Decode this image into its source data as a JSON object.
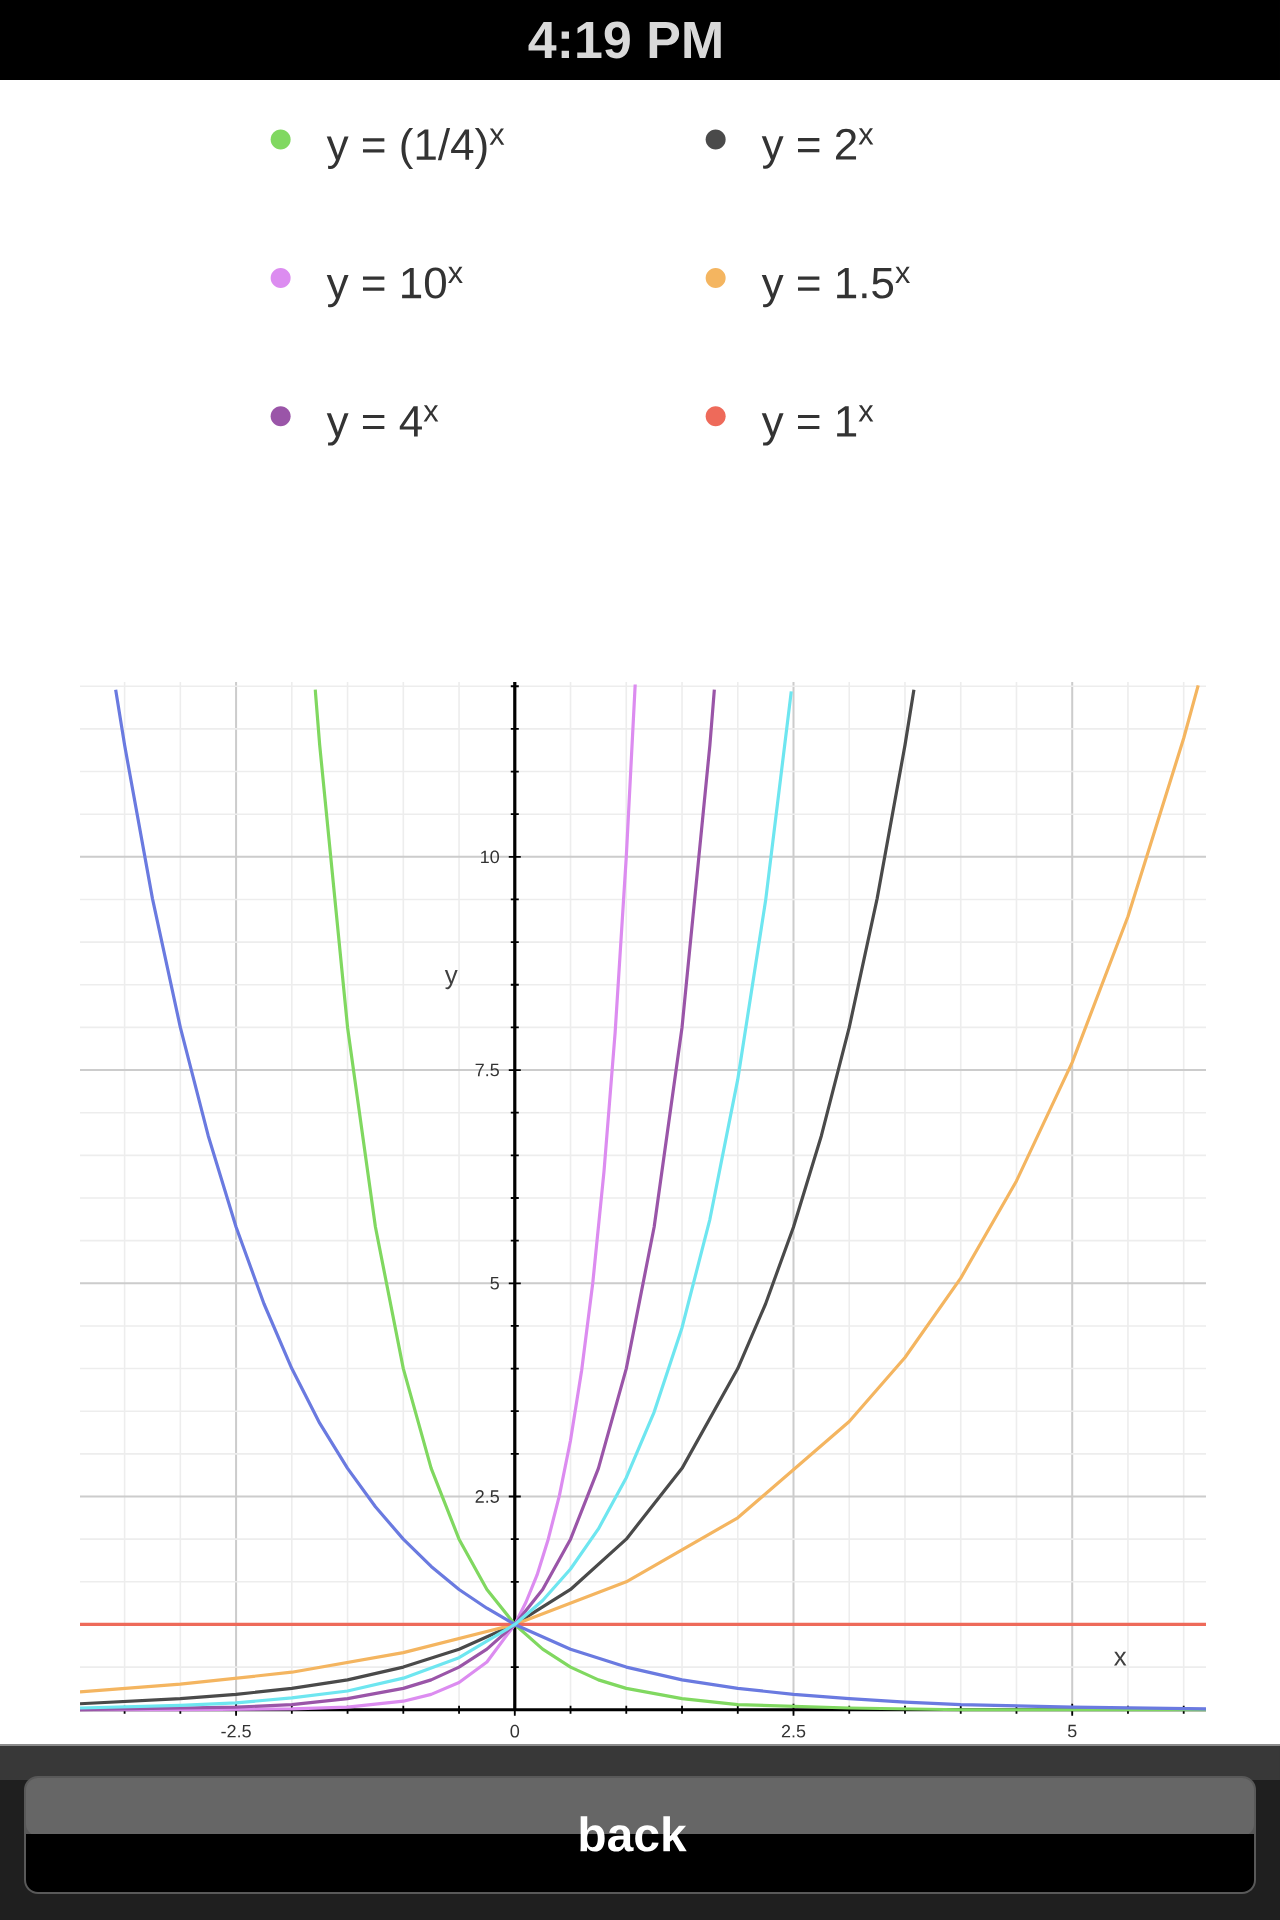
{
  "chart_data": {
    "type": "line",
    "xlabel": "x",
    "ylabel": "y",
    "annotations": [
      "4:19 PM",
      "back"
    ],
    "xlim": [
      -3.9,
      6.2
    ],
    "ylim": [
      -0.05,
      12.05
    ],
    "xticks": [
      {
        "value": -3.5,
        "label": null
      },
      {
        "value": -3,
        "label": null
      },
      -2.5,
      {
        "value": -2,
        "label": null
      },
      {
        "value": -1.5,
        "label": null
      },
      {
        "value": -1,
        "label": null
      },
      {
        "value": -0.5,
        "label": null
      },
      0,
      {
        "value": 0.5,
        "label": null
      },
      {
        "value": 1,
        "label": null
      },
      {
        "value": 1.5,
        "label": null
      },
      {
        "value": 2,
        "label": null
      },
      2.5,
      {
        "value": 3,
        "label": null
      },
      {
        "value": 3.5,
        "label": null
      },
      {
        "value": 4,
        "label": null
      },
      {
        "value": 4.5,
        "label": null
      },
      5,
      {
        "value": 5.5,
        "label": null
      },
      {
        "value": 6,
        "label": null
      }
    ],
    "yticks": [
      {
        "value": 0.5,
        "label": null
      },
      {
        "value": 1,
        "label": null
      },
      {
        "value": 1.5,
        "label": null
      },
      {
        "value": 2,
        "label": null
      },
      2.5,
      {
        "value": 3,
        "label": null
      },
      {
        "value": 3.5,
        "label": null
      },
      {
        "value": 4,
        "label": null
      },
      {
        "value": 4.5,
        "label": null
      },
      5,
      {
        "value": 5.5,
        "label": null
      },
      {
        "value": 6,
        "label": null
      },
      {
        "value": 6.5,
        "label": null
      },
      {
        "value": 7,
        "label": null
      },
      7.5,
      {
        "value": 8,
        "label": null
      },
      {
        "value": 8.5,
        "label": null
      },
      {
        "value": 9,
        "label": null
      },
      {
        "value": 9.5,
        "label": null
      },
      10,
      {
        "value": 10.5,
        "label": null
      },
      {
        "value": 11,
        "label": null
      },
      {
        "value": 11.5,
        "label": null
      },
      {
        "value": 12,
        "label": null
      }
    ],
    "grid": true,
    "legend": "top",
    "series": [
      {
        "name": "y = (1/4)$^{x}$",
        "color": "#80d860",
        "x": [
          -1.79,
          -1.75,
          -1.5,
          -1.25,
          -1,
          -0.75,
          -0.5,
          -0.25,
          0,
          0.25,
          0.5,
          0.75,
          1,
          1.5,
          2,
          3,
          4,
          6.2
        ],
        "values": [
          11.96,
          11.31,
          8,
          5.66,
          4,
          2.83,
          2,
          1.41,
          1,
          0.71,
          0.5,
          0.35,
          0.25,
          0.13,
          0.06,
          0.02,
          0,
          0
        ]
      },
      {
        "name": "y = 2$^{x}$",
        "color": "#4a4a4a",
        "x": [
          -3.9,
          -3,
          -2.5,
          -2,
          -1.5,
          -1,
          -0.5,
          0,
          0.5,
          1,
          1.5,
          2,
          2.25,
          2.5,
          2.75,
          3,
          3.25,
          3.5,
          3.58
        ],
        "values": [
          0.07,
          0.13,
          0.18,
          0.25,
          0.35,
          0.5,
          0.71,
          1,
          1.41,
          2,
          2.83,
          4,
          4.76,
          5.66,
          6.73,
          8,
          9.51,
          11.31,
          11.96
        ]
      },
      {
        "name": "y = 10$^{x}$",
        "color": "#dc8cf0",
        "x": [
          -3.9,
          -3,
          -2,
          -1.5,
          -1,
          -0.75,
          -0.5,
          -0.25,
          0,
          0.1,
          0.2,
          0.3,
          0.4,
          0.5,
          0.6,
          0.7,
          0.8,
          0.9,
          1,
          1.08
        ],
        "values": [
          0,
          0,
          0.01,
          0.03,
          0.1,
          0.18,
          0.32,
          0.56,
          1,
          1.26,
          1.58,
          2,
          2.51,
          3.16,
          3.98,
          5.01,
          6.31,
          7.94,
          10,
          12.02
        ]
      },
      {
        "name": "y = 1.5$^{x}$",
        "color": "#f4b560",
        "x": [
          -3.9,
          -3,
          -2,
          -1,
          0,
          1,
          2,
          3,
          3.5,
          4,
          4.5,
          5,
          5.5,
          6,
          6.13
        ],
        "values": [
          0.21,
          0.3,
          0.44,
          0.67,
          1,
          1.5,
          2.25,
          3.38,
          4.13,
          5.06,
          6.2,
          7.59,
          9.3,
          11.39,
          12.01
        ]
      },
      {
        "name": "y = 4$^{x}$",
        "color": "#9a55a8",
        "x": [
          -3.9,
          -3,
          -2.5,
          -2,
          -1.5,
          -1,
          -0.75,
          -0.5,
          -0.25,
          0,
          0.25,
          0.5,
          0.75,
          1,
          1.25,
          1.5,
          1.75,
          1.79
        ],
        "values": [
          0,
          0.02,
          0.03,
          0.06,
          0.13,
          0.25,
          0.35,
          0.5,
          0.71,
          1,
          1.41,
          2,
          2.83,
          4,
          5.66,
          8,
          11.31,
          11.96
        ]
      },
      {
        "name": "y = 1$^{x}$",
        "color": "#ee6a5a",
        "x": [
          -3.9,
          6.2
        ],
        "values": [
          1,
          1
        ]
      },
      {
        "color": "#6a7ae0",
        "x": [
          -3.58,
          -3.5,
          -3.25,
          -3,
          -2.75,
          -2.5,
          -2.25,
          -2,
          -1.75,
          -1.5,
          -1.25,
          -1,
          -0.75,
          -0.5,
          -0.25,
          0,
          0.5,
          1,
          1.5,
          2,
          2.5,
          3,
          3.5,
          4,
          5,
          6.2
        ],
        "values": [
          11.96,
          11.31,
          9.51,
          8,
          6.73,
          5.66,
          4.76,
          4,
          3.36,
          2.83,
          2.38,
          2,
          1.68,
          1.41,
          1.19,
          1,
          0.71,
          0.5,
          0.35,
          0.25,
          0.18,
          0.13,
          0.09,
          0.06,
          0.03,
          0.01
        ]
      },
      {
        "color": "#6ee6f0",
        "x": [
          -3.9,
          -3,
          -2.5,
          -2,
          -1.5,
          -1,
          -0.5,
          0,
          0.25,
          0.5,
          0.75,
          1,
          1.25,
          1.5,
          1.75,
          2,
          2.25,
          2.48
        ],
        "values": [
          0.02,
          0.05,
          0.08,
          0.14,
          0.22,
          0.37,
          0.61,
          1,
          1.28,
          1.65,
          2.12,
          2.72,
          3.49,
          4.48,
          5.75,
          7.39,
          9.49,
          11.94
        ]
      }
    ]
  }
}
